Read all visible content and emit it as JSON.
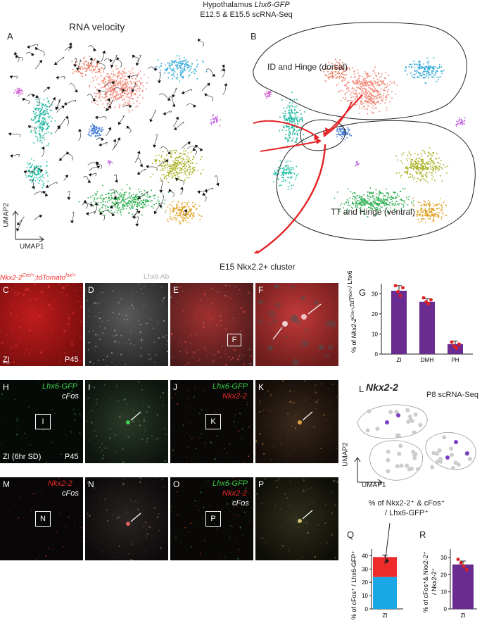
{
  "header": {
    "line1_prefix": "Hypothalamus ",
    "line1_gene": "Lhx6-GFP",
    "line2": "E12.5 & E15.5 scRNA-Seq"
  },
  "panels": {
    "A": "A",
    "B": "B",
    "C": "C",
    "D": "D",
    "E": "E",
    "F": "F",
    "G": "G",
    "H": "H",
    "I": "I",
    "J": "J",
    "K": "K",
    "L": "L",
    "M": "M",
    "N": "N",
    "O": "O",
    "P": "P",
    "Q": "Q",
    "R": "R"
  },
  "panel_A": {
    "title": "RNA velocity",
    "axis_y": "UMAP2",
    "axis_x": "UMAP1"
  },
  "panel_B": {
    "region_dorsal": "ID and Hinge (dorsal)",
    "region_ventral": "TT and Hinge (ventral)",
    "cluster_label": "E15 Nkx2.2+ cluster"
  },
  "row2": {
    "label_C_gene": "Nkx2-2",
    "label_C_sup1": "Cre/+",
    "label_C_mid": ";tdTomato",
    "label_C_sup2": "lox/+",
    "label_D": "Lhx6 Ab",
    "zi": "ZI",
    "age": "P45",
    "box_F": "F"
  },
  "row3": {
    "lhx6gfp": "Lhx6-GFP",
    "cfos": "cFos",
    "nkx22": "Nkx2-2",
    "box_I": "I",
    "box_K": "K",
    "zi_sd": "ZI (6hr SD)",
    "age": "P45"
  },
  "row4": {
    "nkx22": "Nkx2-2",
    "cfos": "cFos",
    "lhx6gfp": "Lhx6-GFP",
    "box_N": "N",
    "box_P": "P"
  },
  "panel_L": {
    "gene": "Nkx2-2",
    "subtitle": "P8 scRNA-Seq",
    "axis_y": "UMAP2",
    "axis_x": "UMAP1"
  },
  "panel_G": {
    "ylabel_prefix": "% of ",
    "ylabel_gene": "Nkx2-2",
    "ylabel_sup1": "Cre/+",
    "ylabel_mid": ";tdT",
    "ylabel_sup2": "lox/+",
    "ylabel_suffix": "/ Lhx6",
    "ylabel_sup3": "+"
  },
  "panel_Q": {
    "title_line1": "% of Nkx2-2⁺ & cFos⁺",
    "title_line2": "/ Lhx6-GFP⁺",
    "ylabel": "% of cFos⁺ / Lhx6-GFP⁺",
    "xlabel": "ZI"
  },
  "panel_R": {
    "ylabel_line1": "% of cFos⁺& Nkx2-2⁺",
    "ylabel_line2": "/ Nkx2-2⁺",
    "xlabel": "ZI"
  },
  "colors": {
    "bar_purple": "#6a2c91",
    "bar_red": "#ee2a2a",
    "bar_blue": "#1aa7e5",
    "dot_red": "#e02020",
    "arrow_red": "#e5262a"
  },
  "chart_data": [
    {
      "id": "G",
      "type": "bar",
      "categories": [
        "ZI",
        "DMH",
        "PH"
      ],
      "values": [
        31.5,
        26,
        5
      ],
      "errors": [
        2.5,
        1.5,
        1.5
      ],
      "points": [
        [
          34,
          31,
          29,
          33
        ],
        [
          28,
          26,
          25,
          27
        ],
        [
          6,
          4,
          3,
          5
        ]
      ],
      "ylim": [
        0,
        35
      ],
      "yticks": [
        0,
        10,
        20,
        30
      ]
    },
    {
      "id": "Q",
      "type": "bar",
      "categories": [
        "ZI"
      ],
      "series": [
        {
          "name": "Nkx2-2⁺ & cFos⁺",
          "values": [
            15
          ]
        },
        {
          "name": "",
          "values": [
            24
          ]
        }
      ],
      "total_error": 1.5,
      "ylim": [
        0,
        45
      ],
      "yticks": [
        0,
        10,
        20,
        30,
        40
      ]
    },
    {
      "id": "R",
      "type": "bar",
      "categories": [
        "ZI"
      ],
      "values": [
        26
      ],
      "errors": [
        2
      ],
      "points": [
        [
          29,
          27,
          25,
          23
        ]
      ],
      "ylim": [
        0,
        35
      ],
      "yticks": [
        0,
        10,
        20,
        30
      ]
    }
  ]
}
